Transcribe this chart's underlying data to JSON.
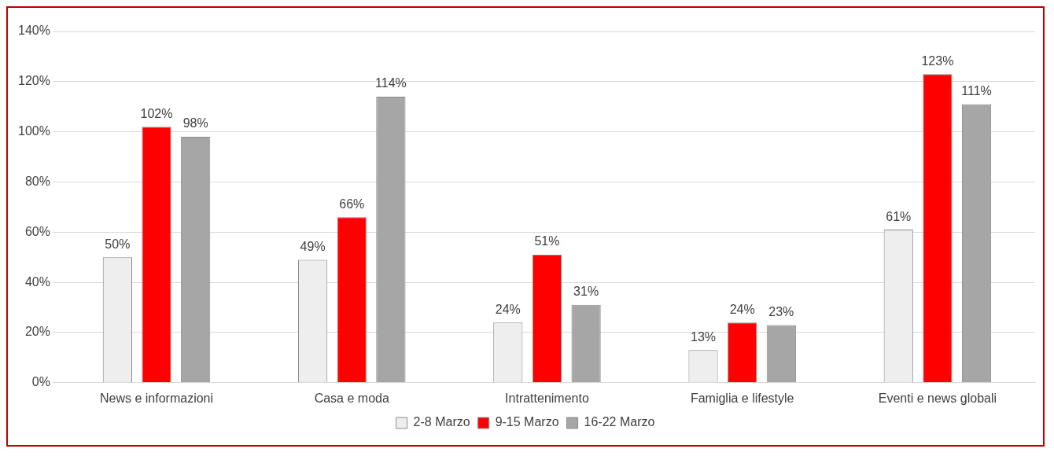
{
  "chart_data": {
    "type": "bar",
    "categories": [
      "News e informazioni",
      "Casa e moda",
      "Intrattenimento",
      "Famiglia e lifestyle",
      "Eventi e news globali"
    ],
    "series": [
      {
        "name": "2-8 Marzo",
        "color": "#eeeeee",
        "values": [
          50,
          49,
          24,
          13,
          61
        ],
        "value_labels": [
          "50%",
          "49%",
          "24%",
          "13%",
          "61%"
        ]
      },
      {
        "name": "9-15 Marzo",
        "color": "#ff0000",
        "values": [
          102,
          66,
          51,
          24,
          123
        ],
        "value_labels": [
          "102%",
          "66%",
          "51%",
          "24%",
          "123%"
        ]
      },
      {
        "name": "16-22 Marzo",
        "color": "#a6a6a6",
        "values": [
          98,
          114,
          31,
          23,
          111
        ],
        "value_labels": [
          "98%",
          "114%",
          "31%",
          "23%",
          "111%"
        ]
      }
    ],
    "ylim": [
      0,
      140
    ],
    "yticks": [
      {
        "value": 0,
        "label": "0%"
      },
      {
        "value": 20,
        "label": "20%"
      },
      {
        "value": 40,
        "label": "40%"
      },
      {
        "value": 60,
        "label": "60%"
      },
      {
        "value": 80,
        "label": "80%"
      },
      {
        "value": 100,
        "label": "100%"
      },
      {
        "value": 120,
        "label": "120%"
      },
      {
        "value": 140,
        "label": "140%"
      }
    ],
    "grid": "y",
    "legend": "bottom"
  }
}
